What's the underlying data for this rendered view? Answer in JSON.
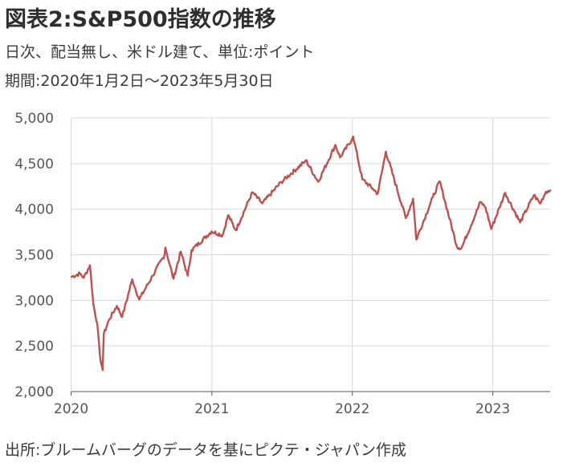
{
  "header": {
    "title": "図表2:S&P500指数の推移",
    "subtitle1": "日次、配当無し、米ドル建て、単位:ポイント",
    "subtitle2": "期間:2020年1月2日～2023年5月30日"
  },
  "footer": {
    "source": "出所:ブルームバーグのデータを基にピクテ・ジャパン作成"
  },
  "colors": {
    "line": "#c0504d",
    "grid": "#d9d9d9",
    "axis": "#555555"
  },
  "chart_data": {
    "type": "line",
    "title": "図表2:S&P500指数の推移",
    "ylabel": "",
    "xlabel": "",
    "ylim": [
      2000,
      5000
    ],
    "xlim": [
      "2020-01-02",
      "2023-05-30"
    ],
    "grid": true,
    "y_ticks": [
      2000,
      2500,
      3000,
      3500,
      4000,
      4500,
      5000
    ],
    "y_tick_labels": [
      "2,000",
      "2,500",
      "3,000",
      "3,500",
      "4,000",
      "4,500",
      "5,000"
    ],
    "x_ticks": [
      "2020-01-01",
      "2021-01-01",
      "2022-01-01",
      "2023-01-01"
    ],
    "x_tick_labels": [
      "2020",
      "2021",
      "2022",
      "2023"
    ],
    "series": [
      {
        "name": "",
        "points": [
          [
            "2020-01-02",
            3258
          ],
          [
            "2020-01-24",
            3295
          ],
          [
            "2020-02-03",
            3248
          ],
          [
            "2020-02-19",
            3386
          ],
          [
            "2020-02-28",
            2954
          ],
          [
            "2020-03-09",
            2746
          ],
          [
            "2020-03-16",
            2386
          ],
          [
            "2020-03-23",
            2237
          ],
          [
            "2020-03-26",
            2630
          ],
          [
            "2020-04-09",
            2790
          ],
          [
            "2020-04-29",
            2939
          ],
          [
            "2020-05-13",
            2820
          ],
          [
            "2020-06-08",
            3232
          ],
          [
            "2020-06-26",
            3009
          ],
          [
            "2020-07-31",
            3271
          ],
          [
            "2020-08-31",
            3500
          ],
          [
            "2020-09-02",
            3580
          ],
          [
            "2020-09-23",
            3237
          ],
          [
            "2020-10-12",
            3534
          ],
          [
            "2020-10-30",
            3270
          ],
          [
            "2020-11-09",
            3550
          ],
          [
            "2020-12-31",
            3756
          ],
          [
            "2021-01-29",
            3714
          ],
          [
            "2021-02-12",
            3934
          ],
          [
            "2021-03-04",
            3768
          ],
          [
            "2021-04-16",
            4185
          ],
          [
            "2021-05-12",
            4063
          ],
          [
            "2021-06-30",
            4297
          ],
          [
            "2021-08-31",
            4523
          ],
          [
            "2021-09-02",
            4537
          ],
          [
            "2021-10-04",
            4300
          ],
          [
            "2021-11-18",
            4704
          ],
          [
            "2021-11-30",
            4567
          ],
          [
            "2021-12-31",
            4766
          ],
          [
            "2022-01-03",
            4797
          ],
          [
            "2022-01-27",
            4327
          ],
          [
            "2022-02-23",
            4225
          ],
          [
            "2022-03-08",
            4170
          ],
          [
            "2022-03-29",
            4631
          ],
          [
            "2022-05-20",
            3901
          ],
          [
            "2022-06-08",
            4115
          ],
          [
            "2022-06-16",
            3667
          ],
          [
            "2022-07-29",
            4130
          ],
          [
            "2022-08-16",
            4305
          ],
          [
            "2022-09-30",
            3585
          ],
          [
            "2022-10-12",
            3577
          ],
          [
            "2022-11-30",
            4080
          ],
          [
            "2022-12-13",
            4019
          ],
          [
            "2022-12-28",
            3783
          ],
          [
            "2023-02-02",
            4179
          ],
          [
            "2023-03-13",
            3855
          ],
          [
            "2023-04-18",
            4155
          ],
          [
            "2023-05-04",
            4061
          ],
          [
            "2023-05-19",
            4191
          ],
          [
            "2023-05-30",
            4206
          ]
        ]
      }
    ]
  },
  "header_notes": {}
}
